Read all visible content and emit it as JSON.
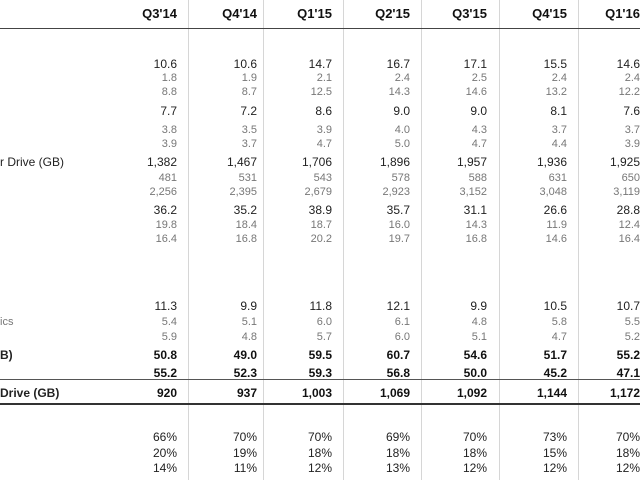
{
  "columns": [
    "Q3'14",
    "Q4'14",
    "Q1'15",
    "Q2'15",
    "Q3'15",
    "Q4'15",
    "Q1'16"
  ],
  "labels": {
    "capacity_gb": "r Drive (GB)",
    "graphics_partial": "ics",
    "bold_total_partial": "B)",
    "bold_drive_gb": "Drive (GB)"
  },
  "rows": [
    {
      "id": "r1",
      "style": "main",
      "values": [
        "10.6",
        "10.6",
        "14.7",
        "16.7",
        "17.1",
        "15.5",
        "14.6"
      ]
    },
    {
      "id": "r2",
      "style": "sub",
      "values": [
        "1.8",
        "1.9",
        "2.1",
        "2.4",
        "2.5",
        "2.4",
        "2.4"
      ]
    },
    {
      "id": "r3",
      "style": "sub",
      "values": [
        "8.8",
        "8.7",
        "12.5",
        "14.3",
        "14.6",
        "13.2",
        "12.2"
      ]
    },
    {
      "id": "r4",
      "style": "main",
      "values": [
        "7.7",
        "7.2",
        "8.6",
        "9.0",
        "9.0",
        "8.1",
        "7.6"
      ]
    },
    {
      "id": "r5",
      "style": "sub",
      "values": [
        "3.8",
        "3.5",
        "3.9",
        "4.0",
        "4.3",
        "3.7",
        "3.7"
      ]
    },
    {
      "id": "r6",
      "style": "sub",
      "values": [
        "3.9",
        "3.7",
        "4.7",
        "5.0",
        "4.7",
        "4.4",
        "3.9"
      ]
    },
    {
      "id": "r7",
      "style": "main",
      "label": "capacity_gb",
      "values": [
        "1,382",
        "1,467",
        "1,706",
        "1,896",
        "1,957",
        "1,936",
        "1,925"
      ]
    },
    {
      "id": "r8",
      "style": "sub",
      "values": [
        "481",
        "531",
        "543",
        "578",
        "588",
        "631",
        "650"
      ]
    },
    {
      "id": "r9",
      "style": "sub",
      "values": [
        "2,256",
        "2,395",
        "2,679",
        "2,923",
        "3,152",
        "3,048",
        "3,119"
      ]
    },
    {
      "id": "r10",
      "style": "main",
      "values": [
        "36.2",
        "35.2",
        "38.9",
        "35.7",
        "31.1",
        "26.6",
        "28.8"
      ]
    },
    {
      "id": "r11",
      "style": "sub",
      "values": [
        "19.8",
        "18.4",
        "18.7",
        "16.0",
        "14.3",
        "11.9",
        "12.4"
      ]
    },
    {
      "id": "r12",
      "style": "sub",
      "values": [
        "16.4",
        "16.8",
        "20.2",
        "19.7",
        "16.8",
        "14.6",
        "16.4"
      ]
    },
    {
      "id": "r13",
      "style": "main",
      "values": [
        "11.3",
        "9.9",
        "11.8",
        "12.1",
        "9.9",
        "10.5",
        "10.7"
      ]
    },
    {
      "id": "r14",
      "style": "sub",
      "label": "graphics_partial",
      "values": [
        "5.4",
        "5.1",
        "6.0",
        "6.1",
        "4.8",
        "5.8",
        "5.5"
      ]
    },
    {
      "id": "r15",
      "style": "sub",
      "values": [
        "5.9",
        "4.8",
        "5.7",
        "6.0",
        "5.1",
        "4.7",
        "5.2"
      ]
    },
    {
      "id": "r16",
      "style": "bold",
      "label": "bold_total_partial",
      "values": [
        "50.8",
        "49.0",
        "59.5",
        "60.7",
        "54.6",
        "51.7",
        "55.2"
      ]
    },
    {
      "id": "r17",
      "style": "bold",
      "values": [
        "55.2",
        "52.3",
        "59.3",
        "56.8",
        "50.0",
        "45.2",
        "47.1"
      ]
    },
    {
      "id": "r18",
      "style": "bold",
      "label": "bold_drive_gb",
      "values": [
        "920",
        "937",
        "1,003",
        "1,069",
        "1,092",
        "1,144",
        "1,172"
      ]
    },
    {
      "id": "r19",
      "style": "main",
      "values": [
        "66%",
        "70%",
        "70%",
        "69%",
        "70%",
        "73%",
        "70%"
      ]
    },
    {
      "id": "r20",
      "style": "main",
      "values": [
        "20%",
        "19%",
        "18%",
        "18%",
        "18%",
        "15%",
        "18%"
      ]
    },
    {
      "id": "r21",
      "style": "main",
      "values": [
        "14%",
        "11%",
        "12%",
        "13%",
        "12%",
        "12%",
        "12%"
      ]
    }
  ]
}
